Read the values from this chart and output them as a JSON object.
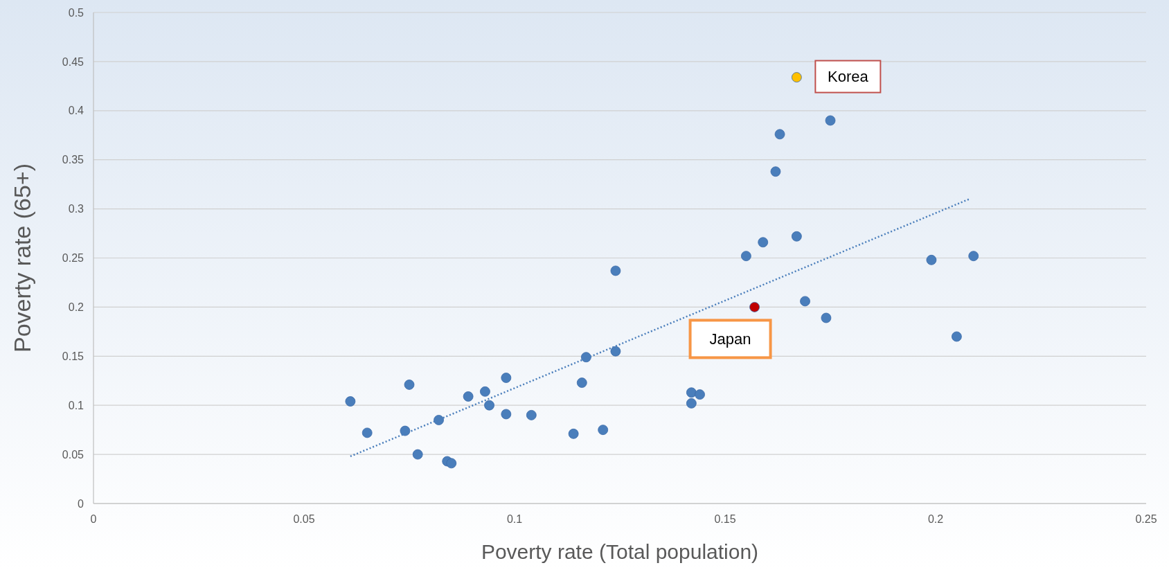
{
  "chart_data": {
    "type": "scatter",
    "xlabel": "Poverty rate (Total population)",
    "ylabel": "Poverty rate (65+)",
    "xlim": [
      0,
      0.25
    ],
    "xticks": [
      0,
      0.05,
      0.1,
      0.15,
      0.2,
      0.25
    ],
    "ylim": [
      0,
      0.5
    ],
    "yticks": [
      0,
      0.05,
      0.1,
      0.15,
      0.2,
      0.25,
      0.3,
      0.35,
      0.4,
      0.45,
      0.5
    ],
    "grid": "y",
    "series": [
      {
        "marker": "circle",
        "color": "#4a7ebb",
        "x": [
          0.061,
          0.065,
          0.075,
          0.074,
          0.077,
          0.082,
          0.084,
          0.085,
          0.089,
          0.093,
          0.094,
          0.098,
          0.098,
          0.104,
          0.114,
          0.116,
          0.117,
          0.121,
          0.124,
          0.124,
          0.142,
          0.142,
          0.144,
          0.155,
          0.159,
          0.162,
          0.163,
          0.167,
          0.169,
          0.174,
          0.175,
          0.199,
          0.205,
          0.209
        ],
        "values": [
          0.104,
          0.072,
          0.121,
          0.074,
          0.05,
          0.085,
          0.043,
          0.041,
          0.109,
          0.114,
          0.1,
          0.128,
          0.091,
          0.09,
          0.071,
          0.123,
          0.149,
          0.075,
          0.237,
          0.155,
          0.113,
          0.102,
          0.111,
          0.252,
          0.266,
          0.338,
          0.376,
          0.272,
          0.206,
          0.189,
          0.39,
          0.248,
          0.17,
          0.252
        ]
      },
      {
        "marker": "circle",
        "color": "#c00000",
        "x": [
          0.157
        ],
        "values": [
          0.2
        ]
      },
      {
        "marker": "circle",
        "color": "#ffc000",
        "x": [
          0.167
        ],
        "values": [
          0.434
        ]
      },
      {
        "type": "line",
        "marker": "none",
        "color": "#4a7ebb",
        "line_style": "dotted",
        "x": [
          0.061,
          0.208
        ],
        "values": [
          0.048,
          0.31
        ]
      }
    ],
    "annotations": [
      {
        "text": "Korea",
        "x": 0.167,
        "y": 0.434
      },
      {
        "text": "Japan",
        "x": 0.157,
        "y": 0.2
      }
    ]
  }
}
